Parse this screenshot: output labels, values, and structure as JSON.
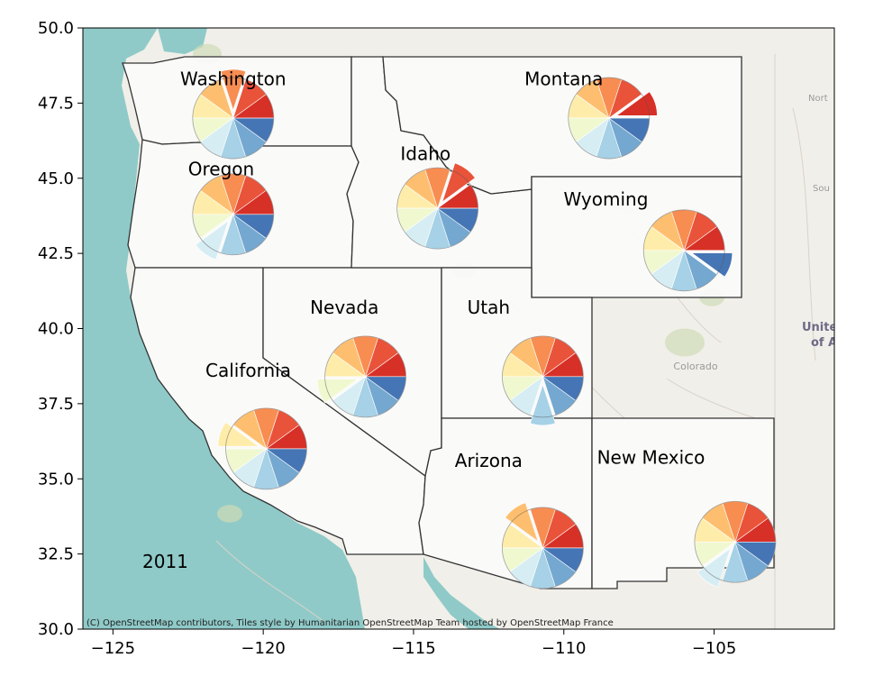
{
  "map": {
    "year_label": "2011",
    "attribution": "(C) OpenStreetMap contributors, Tiles style by Humanitarian OpenStreetMap Team hosted by OpenStreetMap France",
    "basemap_labels": [
      "Colorado",
      "Unite",
      "of A",
      "Nort",
      "Sou"
    ],
    "axes": {
      "xlim": [
        -126,
        -101
      ],
      "ylim": [
        30,
        50
      ],
      "x_ticks": [
        -125,
        -120,
        -115,
        -110,
        -105
      ],
      "y_ticks": [
        30.0,
        32.5,
        35.0,
        37.5,
        40.0,
        42.5,
        45.0,
        47.5,
        50.0
      ],
      "x_tick_labels": [
        "−125",
        "−120",
        "−115",
        "−110",
        "−105"
      ],
      "y_tick_labels": [
        "30.0",
        "32.5",
        "35.0",
        "37.5",
        "40.0",
        "42.5",
        "45.0",
        "47.5",
        "50.0"
      ]
    },
    "colors": {
      "ocean": "#8fcac8",
      "land": "#f1efe9",
      "state_fill": "#fbfbfa",
      "border": "#333333"
    },
    "pie_colors": [
      "#d73027",
      "#f46d43",
      "#fdae61",
      "#fee090",
      "#ffffbf",
      "#e0f3f8",
      "#abd9e9",
      "#74add1",
      "#4575b4",
      "#d73027"
    ],
    "pie_colors_ordered": [
      "#d73027",
      "#e9533a",
      "#f88d52",
      "#fdbf6f",
      "#feedaa",
      "#f0f8d0",
      "#d6edf3",
      "#a6d1e6",
      "#74a8d0",
      "#4575b4"
    ],
    "states": [
      {
        "name": "Washington",
        "label_lon": -121.0,
        "label_lat": 48.1,
        "pie_lon": -121.0,
        "pie_lat": 47.0,
        "exploded": 2
      },
      {
        "name": "Oregon",
        "label_lon": -121.4,
        "label_lat": 45.1,
        "pie_lon": -121.0,
        "pie_lat": 43.8,
        "exploded": 6
      },
      {
        "name": "Montana",
        "label_lon": -110.0,
        "label_lat": 48.1,
        "pie_lon": -108.5,
        "pie_lat": 47.0,
        "exploded": 0
      },
      {
        "name": "Idaho",
        "label_lon": -114.6,
        "label_lat": 45.6,
        "pie_lon": -114.2,
        "pie_lat": 44.0,
        "exploded": 1
      },
      {
        "name": "Wyoming",
        "label_lon": -108.6,
        "label_lat": 44.1,
        "pie_lon": -106.0,
        "pie_lat": 42.6,
        "exploded": 9
      },
      {
        "name": "Nevada",
        "label_lon": -117.3,
        "label_lat": 40.5,
        "pie_lon": -116.6,
        "pie_lat": 38.4,
        "exploded": 5
      },
      {
        "name": "Utah",
        "label_lon": -112.5,
        "label_lat": 40.5,
        "pie_lon": -110.7,
        "pie_lat": 38.4,
        "exploded": 7
      },
      {
        "name": "California",
        "label_lon": -120.5,
        "label_lat": 38.4,
        "pie_lon": -119.9,
        "pie_lat": 36.0,
        "exploded": 4
      },
      {
        "name": "Arizona",
        "label_lon": -112.5,
        "label_lat": 35.4,
        "pie_lon": -110.7,
        "pie_lat": 32.7,
        "exploded": 3
      },
      {
        "name": "New Mexico",
        "label_lon": -107.1,
        "label_lat": 35.5,
        "pie_lon": -104.3,
        "pie_lat": 32.9,
        "exploded": 6
      }
    ]
  }
}
